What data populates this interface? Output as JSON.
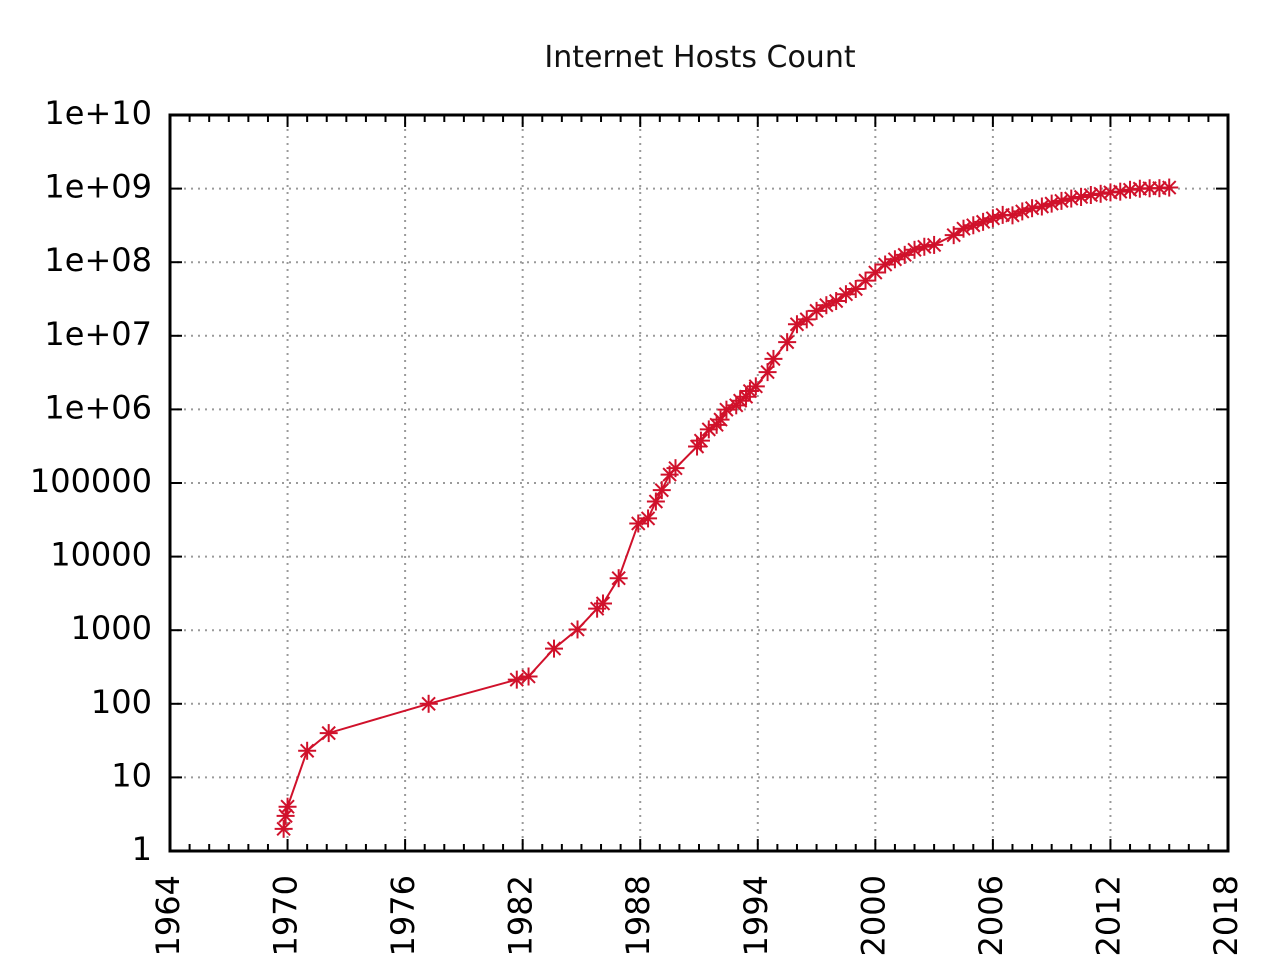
{
  "chart_data": {
    "type": "line",
    "title": "Internet Hosts Count",
    "xlabel": "",
    "ylabel": "",
    "xlim": [
      1964,
      2018
    ],
    "ylim": [
      1,
      10000000000
    ],
    "y_scale": "log",
    "grid": true,
    "legend": "none",
    "x_ticks": [
      "1964",
      "1970",
      "1976",
      "1982",
      "1988",
      "1994",
      "2000",
      "2006",
      "2012",
      "2018"
    ],
    "y_ticks": [
      "1",
      "10",
      "100",
      "1000",
      "10000",
      "100000",
      "1e+06",
      "1e+07",
      "1e+08",
      "1e+09",
      "1e+10"
    ],
    "colors": {
      "series": "#d0112b",
      "grid": "#9a9a9a",
      "frame": "#000000"
    },
    "series": [
      {
        "marker": "asterisk",
        "points": [
          [
            1969.8,
            2
          ],
          [
            1969.9,
            3
          ],
          [
            1970.0,
            4
          ],
          [
            1971.0,
            23
          ],
          [
            1972.1,
            40
          ],
          [
            1977.2,
            100
          ],
          [
            1981.7,
            213
          ],
          [
            1982.3,
            235
          ],
          [
            1983.6,
            562
          ],
          [
            1984.8,
            1024
          ],
          [
            1985.8,
            1961
          ],
          [
            1986.1,
            2308
          ],
          [
            1986.9,
            5089
          ],
          [
            1987.9,
            28174
          ],
          [
            1988.4,
            33000
          ],
          [
            1988.8,
            56000
          ],
          [
            1989.1,
            80000
          ],
          [
            1989.5,
            130000
          ],
          [
            1989.8,
            159000
          ],
          [
            1990.9,
            313000
          ],
          [
            1991.1,
            376000
          ],
          [
            1991.5,
            535000
          ],
          [
            1991.9,
            617000
          ],
          [
            1992.1,
            727000
          ],
          [
            1992.4,
            992000
          ],
          [
            1992.9,
            1136000
          ],
          [
            1993.1,
            1313000
          ],
          [
            1993.4,
            1486000
          ],
          [
            1993.6,
            1776000
          ],
          [
            1993.9,
            2056000
          ],
          [
            1994.5,
            3212000
          ],
          [
            1994.8,
            4852000
          ],
          [
            1995.5,
            8200000
          ],
          [
            1996.0,
            14352000
          ],
          [
            1996.5,
            16729000
          ],
          [
            1997.0,
            21819000
          ],
          [
            1997.5,
            26053000
          ],
          [
            1998.0,
            29670000
          ],
          [
            1998.5,
            36739000
          ],
          [
            1999.0,
            43230000
          ],
          [
            1999.5,
            56218000
          ],
          [
            2000.0,
            72398000
          ],
          [
            2000.5,
            93047000
          ],
          [
            2001.0,
            109574000
          ],
          [
            2001.5,
            125888000
          ],
          [
            2002.0,
            147345000
          ],
          [
            2002.5,
            162128000
          ],
          [
            2003.0,
            171638000
          ],
          [
            2004.0,
            233101000
          ],
          [
            2004.5,
            285139000
          ],
          [
            2005.0,
            317646000
          ],
          [
            2005.5,
            353284000
          ],
          [
            2006.0,
            394991000
          ],
          [
            2006.5,
            439286000
          ],
          [
            2007.0,
            433193000
          ],
          [
            2007.5,
            489774000
          ],
          [
            2008.0,
            541677000
          ],
          [
            2008.5,
            570937000
          ],
          [
            2009.0,
            625226000
          ],
          [
            2009.5,
            681064000
          ],
          [
            2010.0,
            732740000
          ],
          [
            2010.5,
            768913000
          ],
          [
            2011.0,
            818374000
          ],
          [
            2011.5,
            849869000
          ],
          [
            2012.0,
            888239000
          ],
          [
            2012.5,
            908585000
          ],
          [
            2013.0,
            963518000
          ],
          [
            2013.5,
            996230000
          ],
          [
            2014.0,
            1010251000
          ],
          [
            2014.5,
            1012706000
          ],
          [
            2015.0,
            1033000000
          ]
        ]
      }
    ]
  }
}
